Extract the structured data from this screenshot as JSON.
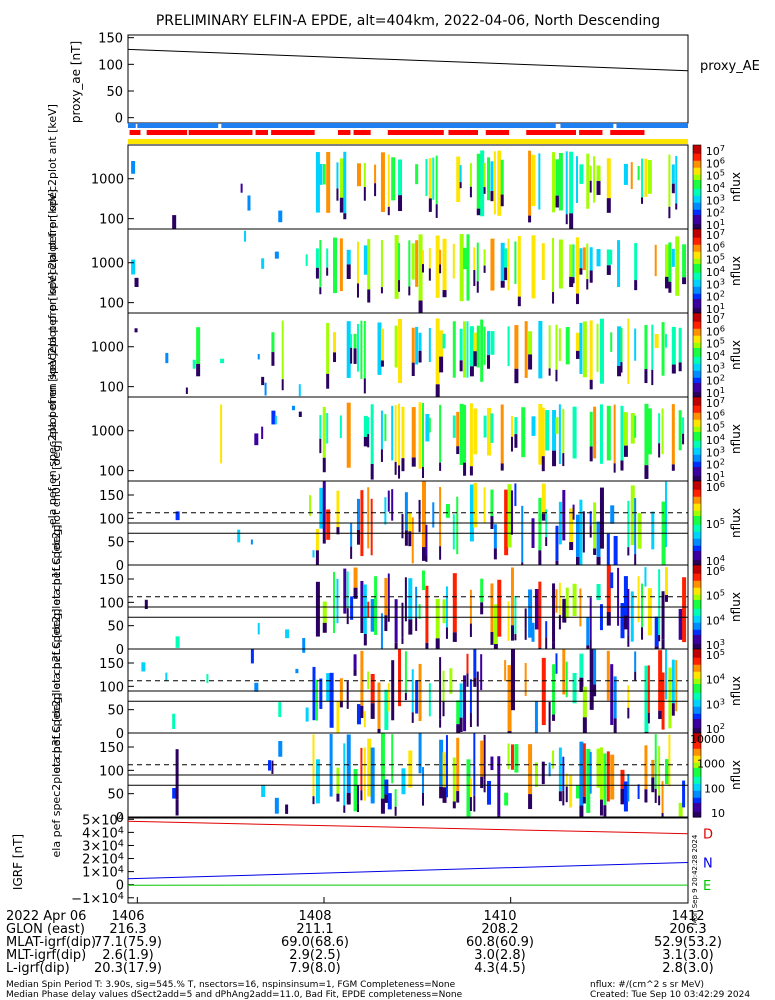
{
  "title": "PRELIMINARY ELFIN-A EPDE, alt=404km, 2022-04-06, North Descending",
  "colors": {
    "axis": "#000000",
    "ae_line": "#000000",
    "bar_blue": "#1e7ff0",
    "bar_red": "#ff0000",
    "bar_yellow": "#ffe600",
    "igrf_D": "#e00000",
    "igrf_N": "#0000e6",
    "igrf_E": "#00c800"
  },
  "chart_data": [
    {
      "type": "line",
      "id": "proxy_ae",
      "ylabel": "proxy_ae [nT]",
      "ylim": [
        -10,
        155
      ],
      "yticks": [
        "150",
        "100",
        "50",
        "0"
      ],
      "legend_label": "proxy_AE",
      "series": [
        {
          "name": "proxy_AE",
          "x_min": [
            0,
            360
          ],
          "y": [
            128,
            88
          ]
        }
      ]
    },
    {
      "type": "heatmap",
      "id": "status_bars",
      "rows": [
        {
          "color": "bar_blue",
          "segments": [
            [
              0,
              5
            ],
            [
              6,
              58
            ],
            [
              60,
              275
            ],
            [
              278,
              312
            ],
            [
              314,
              360
            ]
          ]
        },
        {
          "color": "bar_red",
          "segments": [
            [
              1,
              8
            ],
            [
              12,
              38
            ],
            [
              39,
              80
            ],
            [
              82,
              90
            ],
            [
              92,
              120
            ],
            [
              135,
              143
            ],
            [
              145,
              156
            ],
            [
              167,
              203
            ],
            [
              206,
              225
            ],
            [
              230,
              245
            ],
            [
              256,
              288
            ],
            [
              290,
              305
            ],
            [
              310,
              332
            ]
          ]
        },
        {
          "color": "bar_yellow",
          "segments": [
            [
              0,
              360
            ]
          ]
        }
      ]
    },
    {
      "type": "heatmap",
      "id": "spec2plot_ant",
      "ylabel": "ela pef en spec2plot ant [keV]",
      "scale": "log",
      "ylim": [
        55,
        7000
      ],
      "yticks": [
        "1000",
        "100"
      ],
      "colorbar_label": "nflux",
      "colorbar_ticks": [
        "10^7",
        "10^6",
        "10^5",
        "10^4",
        "10^3",
        "10^2",
        "10^1"
      ]
    },
    {
      "type": "heatmap",
      "id": "spec2plot_trp",
      "ylabel": "ela pef en spec2plot trp [keV]",
      "scale": "log",
      "ylim": [
        55,
        7000
      ],
      "yticks": [
        "1000",
        "100"
      ],
      "colorbar_label": "nflux",
      "colorbar_ticks": [
        "10^7",
        "10^6",
        "10^5",
        "10^4",
        "10^3",
        "10^2",
        "10^1"
      ]
    },
    {
      "type": "heatmap",
      "id": "spec2plot_prp",
      "ylabel": "ela pef en spec2plot prp [keV]",
      "scale": "log",
      "ylim": [
        55,
        7000
      ],
      "yticks": [
        "1000",
        "100"
      ],
      "colorbar_label": "nflux",
      "colorbar_ticks": [
        "10^7",
        "10^6",
        "10^5",
        "10^4",
        "10^3",
        "10^2",
        "10^1"
      ]
    },
    {
      "type": "heatmap",
      "id": "spec2plot_omn",
      "ylabel": "ela pef en spec2plot omn [keV]",
      "scale": "log",
      "ylim": [
        55,
        7000
      ],
      "yticks": [
        "1000",
        "100"
      ],
      "colorbar_label": "nflux",
      "colorbar_ticks": [
        "10^7",
        "10^6",
        "10^5",
        "10^4",
        "10^3",
        "10^2",
        "10^1"
      ]
    },
    {
      "type": "heatmap",
      "id": "spec2plot_ch0LC",
      "ylabel": "ela pef spec2plot ch0LC [deg]",
      "ylim": [
        0,
        180
      ],
      "yticks": [
        "150",
        "100",
        "50",
        "0"
      ],
      "colorbar_label": "nflux",
      "colorbar_ticks": [
        "10^6",
        "10^5",
        "10^4"
      ]
    },
    {
      "type": "heatmap",
      "id": "spec2plot_ch1LC",
      "ylabel": "ela pef spec2plot ch1LC [deg]",
      "ylim": [
        0,
        180
      ],
      "yticks": [
        "150",
        "100",
        "50",
        "0"
      ],
      "colorbar_label": "nflux",
      "colorbar_ticks": [
        "10^6",
        "10^5",
        "10^4",
        "10^3"
      ]
    },
    {
      "type": "heatmap",
      "id": "spec2plot_ch2LC",
      "ylabel": "ela pef spec2plot ch2LC [deg]",
      "ylim": [
        0,
        180
      ],
      "yticks": [
        "150",
        "100",
        "50",
        "0"
      ],
      "colorbar_label": "nflux",
      "colorbar_ticks": [
        "10^5",
        "10^4",
        "10^3",
        "10^2"
      ]
    },
    {
      "type": "heatmap",
      "id": "spec2plot_ch3LC",
      "ylabel": "ela pef spec2plot ch3LC [deg]",
      "ylim": [
        0,
        180
      ],
      "yticks": [
        "150",
        "100",
        "50",
        "0"
      ],
      "colorbar_label": "nflux",
      "colorbar_ticks": [
        "10000",
        "1000",
        "100",
        "10"
      ]
    },
    {
      "type": "line",
      "id": "igrf",
      "ylabel": "IGRF [nT]",
      "ylim": [
        -14000,
        51000
      ],
      "yticks": [
        "5×10^4",
        "4×10^4",
        "3×10^4",
        "2×10^4",
        "1×10^4",
        "0",
        "−1×10^4"
      ],
      "side_note": "Mon Sep 9 20:42:28 2024",
      "series": [
        {
          "name": "D",
          "color": "igrf_D",
          "x_min": [
            0,
            360
          ],
          "y": [
            48500,
            39000
          ]
        },
        {
          "name": "N",
          "color": "igrf_N",
          "x_min": [
            0,
            360
          ],
          "y": [
            4500,
            17000
          ]
        },
        {
          "name": "E",
          "color": "igrf_E",
          "x_min": [
            0,
            360
          ],
          "y": [
            -400,
            -300
          ]
        }
      ]
    }
  ],
  "xaxis": {
    "x_min": [
      0,
      360
    ],
    "tick_minutes": [
      6,
      126,
      246,
      366
    ],
    "tick_labels": [
      "1406",
      "1408",
      "1410",
      "1412"
    ]
  },
  "footer": {
    "rows": [
      [
        "2022 Apr 06",
        "1406",
        "",
        "1408",
        "",
        "1410",
        "",
        "1412"
      ],
      [
        "GLON (east)",
        "216.3",
        "211.1",
        "208.2",
        "206.3"
      ],
      [
        "MLAT-igrf(dip)",
        "77.1(75.9)",
        "69.0(68.6)",
        "60.8(60.9)",
        "52.9(53.2)"
      ],
      [
        "MLT-igrf(dip)",
        "2.6(1.9)",
        "2.9(2.5)",
        "3.0(2.8)",
        "3.1(3.0)"
      ],
      [
        "L-igrf(dip)",
        "20.3(17.9)",
        "7.9(8.0)",
        "4.3(4.5)",
        "2.8(3.0)"
      ]
    ],
    "note_left_1": "Median Spin Period T: 3.90s, sig=545.% T, nsectors=16, nspinsinsum=1, FGM Completeness=None",
    "note_left_2": "Median Phase delay values dSect2add=5 and dPhAng2add=11.0, Bad Fit, EPDE completeness=None",
    "note_right_1": "nflux: #/(cm^2 s sr MeV)",
    "note_right_2": "Created: Tue Sep 10 03:42:29 2024"
  }
}
